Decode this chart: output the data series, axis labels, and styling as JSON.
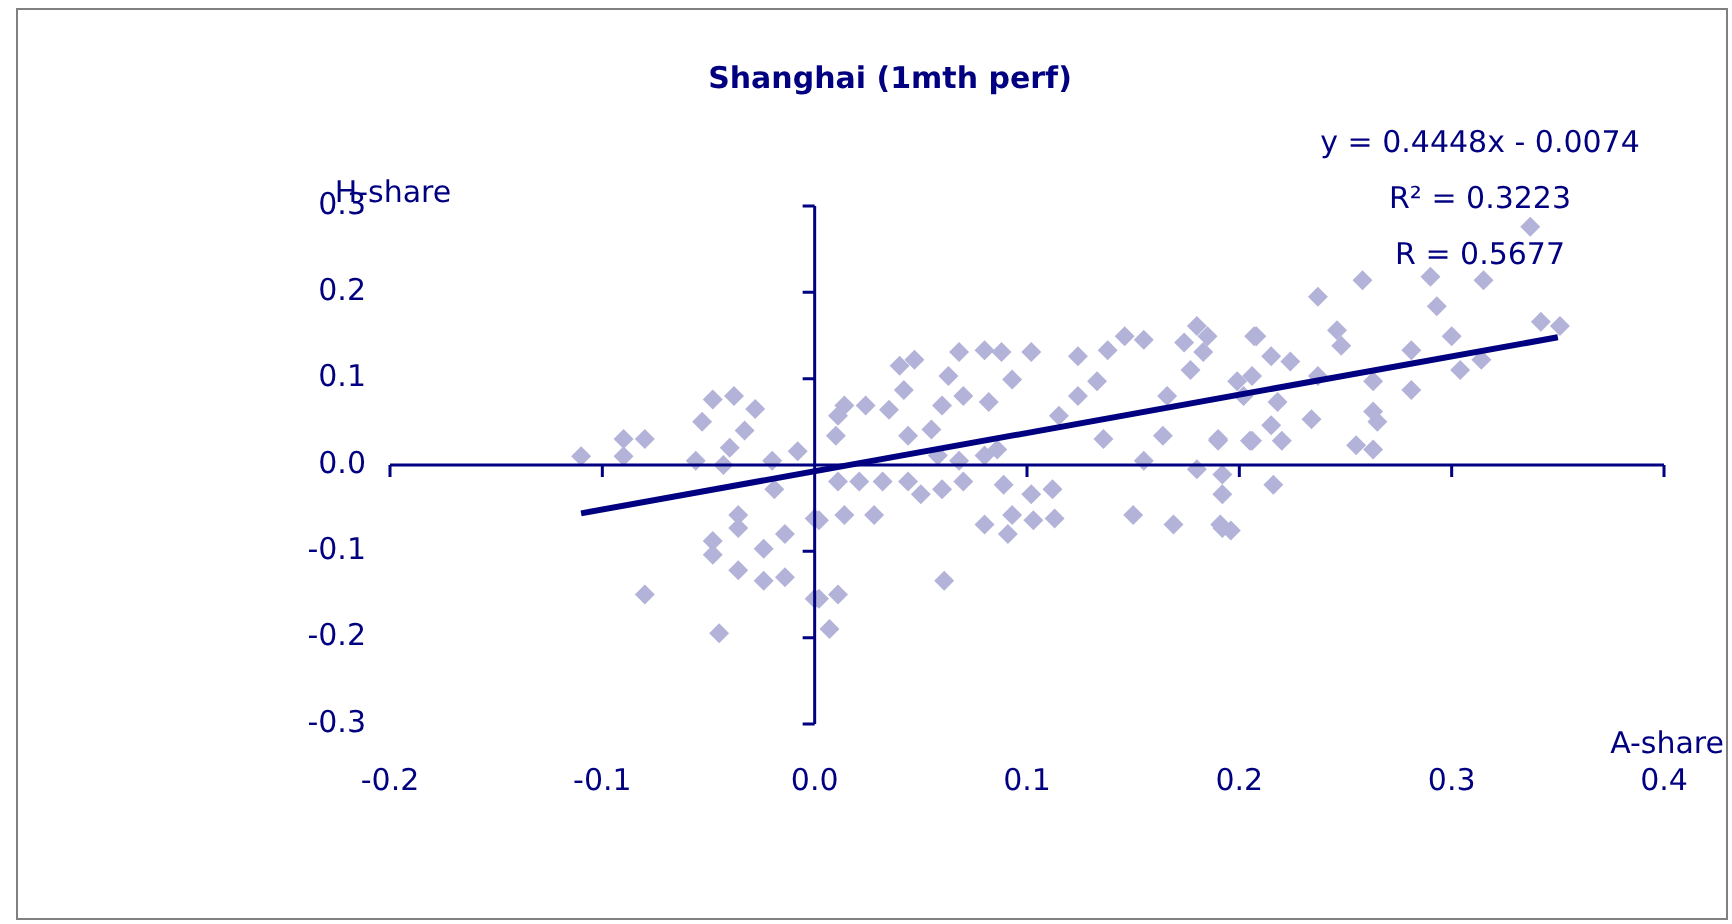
{
  "chart_data": {
    "type": "scatter",
    "title": "Shanghai (1mth perf)",
    "xlabel": "A-share",
    "ylabel": "H-share",
    "annotations": [
      "y = 0.4448x - 0.0074",
      "R² = 0.3223",
      "R = 0.5677"
    ],
    "xlim": [
      -0.2,
      0.4
    ],
    "xticks": [
      {
        "value": -0.2,
        "label": "-0.2"
      },
      {
        "value": -0.1,
        "label": "-0.1"
      },
      {
        "value": 0,
        "label": "0.0"
      },
      {
        "value": 0.1,
        "label": "0.1"
      },
      {
        "value": 0.2,
        "label": "0.2"
      },
      {
        "value": 0.3,
        "label": "0.3"
      },
      {
        "value": 0.4,
        "label": "0.4"
      }
    ],
    "ylim": [
      -0.3,
      0.3
    ],
    "yticks": [
      {
        "value": -0.3,
        "label": "-0.3"
      },
      {
        "value": -0.2,
        "label": "-0.2"
      },
      {
        "value": -0.1,
        "label": "-0.1"
      },
      {
        "value": 0,
        "label": "0.0"
      },
      {
        "value": 0.1,
        "label": "0.1"
      },
      {
        "value": 0.2,
        "label": "0.2"
      },
      {
        "value": 0.3,
        "label": "0.3"
      }
    ],
    "legend": false,
    "series": [
      {
        "type": "scatter",
        "color": "#b3b3d9",
        "marker": "diamond",
        "x": [
          -0.11,
          -0.09,
          -0.08,
          -0.09,
          -0.048,
          -0.038,
          -0.053,
          -0.028,
          -0.033,
          -0.04,
          -0.056,
          -0.043,
          -0.02,
          -0.008,
          -0.019,
          -0.036,
          -0.036,
          -0.048,
          -0.048,
          -0.024,
          -0.014,
          -0.036,
          -0.024,
          -0.014,
          -0.08,
          -0.045,
          0.0,
          0.0,
          0.002,
          0.002,
          0.011,
          0.007,
          0.014,
          0.028,
          0.011,
          0.021,
          0.032,
          0.011,
          0.014,
          0.024,
          0.01,
          0.035,
          0.04,
          0.047,
          0.042,
          0.044,
          0.055,
          0.068,
          0.063,
          0.07,
          0.06,
          0.08,
          0.088,
          0.093,
          0.082,
          0.044,
          0.05,
          0.06,
          0.058,
          0.068,
          0.07,
          0.08,
          0.086,
          0.089,
          0.08,
          0.091,
          0.093,
          0.102,
          0.112,
          0.103,
          0.113,
          0.061,
          0.102,
          0.124,
          0.124,
          0.133,
          0.138,
          0.146,
          0.155,
          0.115,
          0.136,
          0.155,
          0.15,
          0.169,
          0.164,
          0.166,
          0.174,
          0.18,
          0.183,
          0.177,
          0.19,
          0.18,
          0.192,
          0.192,
          0.206,
          0.202,
          0.206,
          0.207,
          0.185,
          0.208,
          0.215,
          0.224,
          0.237,
          0.246,
          0.248,
          0.237,
          0.258,
          0.281,
          0.29,
          0.293,
          0.315,
          0.337,
          0.342,
          0.351,
          0.3,
          0.304,
          0.314,
          0.281,
          0.263,
          0.263,
          0.265,
          0.255,
          0.263,
          0.234,
          0.218,
          0.215,
          0.22,
          0.205,
          0.19,
          0.192,
          0.216,
          0.191,
          0.196,
          0.199
        ],
        "values": [
          0.01,
          0.03,
          0.03,
          0.01,
          0.076,
          0.08,
          0.05,
          0.065,
          0.04,
          0.02,
          0.005,
          0.0,
          0.005,
          0.016,
          -0.028,
          -0.058,
          -0.073,
          -0.088,
          -0.104,
          -0.097,
          -0.08,
          -0.122,
          -0.134,
          -0.13,
          -0.15,
          -0.195,
          -0.062,
          -0.155,
          -0.064,
          -0.155,
          -0.15,
          -0.19,
          -0.058,
          -0.058,
          -0.019,
          -0.019,
          -0.019,
          0.057,
          0.069,
          0.069,
          0.034,
          0.064,
          0.115,
          0.122,
          0.087,
          0.034,
          0.041,
          0.131,
          0.103,
          0.08,
          0.069,
          0.133,
          0.131,
          0.099,
          0.073,
          -0.019,
          -0.034,
          -0.028,
          0.011,
          0.005,
          -0.019,
          0.011,
          0.018,
          -0.023,
          -0.069,
          -0.08,
          -0.058,
          -0.034,
          -0.028,
          -0.064,
          -0.062,
          -0.134,
          0.131,
          0.126,
          0.08,
          0.097,
          0.133,
          0.149,
          0.145,
          0.057,
          0.03,
          0.005,
          -0.058,
          -0.069,
          0.034,
          0.08,
          0.142,
          0.161,
          0.131,
          0.11,
          0.028,
          -0.005,
          -0.034,
          -0.073,
          0.103,
          0.08,
          0.028,
          0.149,
          0.149,
          0.149,
          0.126,
          0.12,
          0.195,
          0.156,
          0.138,
          0.103,
          0.214,
          0.133,
          0.218,
          0.184,
          0.214,
          0.276,
          0.166,
          0.161,
          0.149,
          0.11,
          0.122,
          0.087,
          0.097,
          0.062,
          0.05,
          0.023,
          0.018,
          0.053,
          0.073,
          0.046,
          0.028,
          0.028,
          0.03,
          -0.011,
          -0.023,
          -0.069,
          -0.076,
          0.097
        ]
      },
      {
        "type": "line",
        "color": "#000080",
        "marker": "none",
        "x": [
          -0.11,
          0.35
        ],
        "values": [
          -0.056,
          0.148
        ]
      }
    ]
  }
}
